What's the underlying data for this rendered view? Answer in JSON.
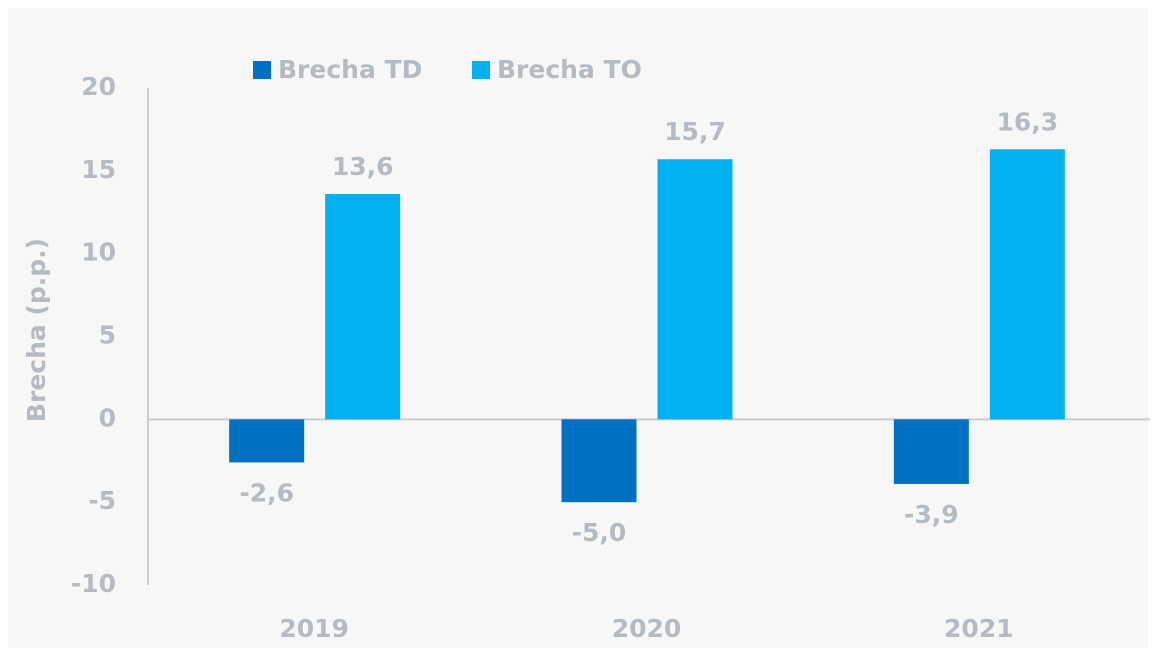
{
  "chart_data": {
    "type": "bar",
    "y_label": "Brecha (p.p.)",
    "categories": [
      "2019",
      "2020",
      "2021"
    ],
    "series": [
      {
        "name": "Brecha TD",
        "color": "#0070c0",
        "values": [
          -2.6,
          -5.0,
          -3.9
        ],
        "value_labels": [
          "-2,6",
          "-5,0",
          "-3,9"
        ]
      },
      {
        "name": "Brecha TO",
        "color": "#00b0f0",
        "values": [
          13.6,
          15.7,
          16.3
        ],
        "value_labels": [
          "13,6",
          "15,7",
          "16,3"
        ]
      }
    ],
    "ylim": [
      -10,
      20
    ],
    "yticks": [
      -10,
      -5,
      0,
      5,
      10,
      15,
      20
    ],
    "grid": false
  }
}
